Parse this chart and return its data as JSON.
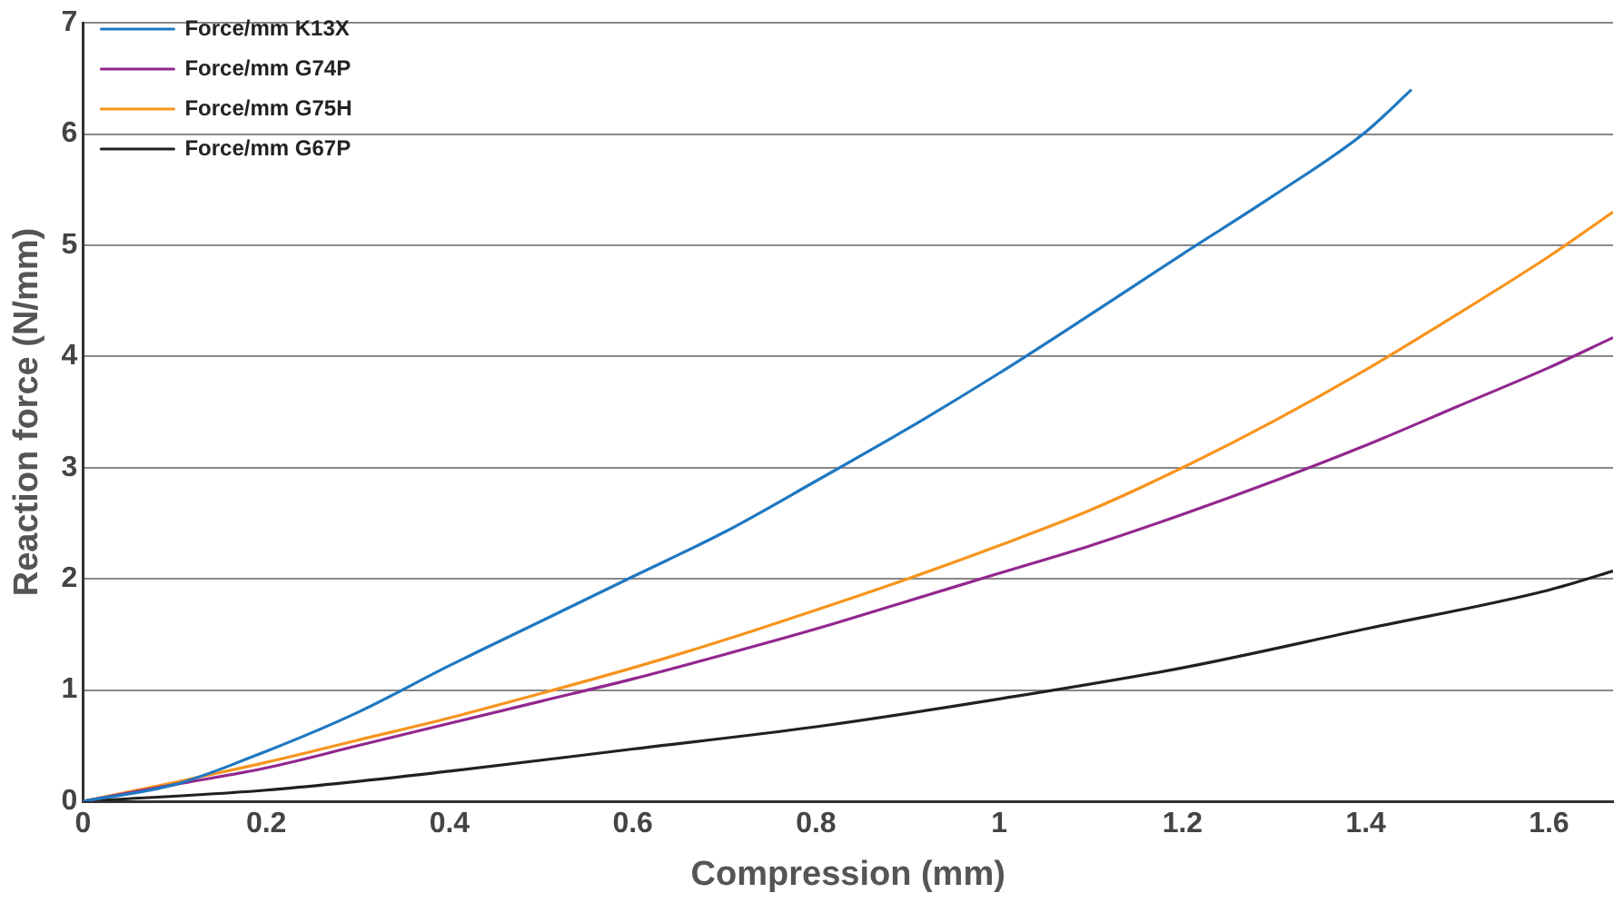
{
  "chart_data": {
    "type": "line",
    "xlabel": "Compression (mm)",
    "ylabel": "Reaction force (N/mm)",
    "xlim": [
      0,
      1.67
    ],
    "xticks": [
      0,
      0.2,
      0.4,
      0.6,
      0.8,
      1.0,
      1.2,
      1.4,
      1.6
    ],
    "ylim": [
      0,
      7
    ],
    "yticks": [
      0,
      1,
      2,
      3,
      4,
      5,
      6,
      7
    ],
    "grid": "y",
    "legend": "top left",
    "marker": "none",
    "line_style": "solid",
    "series": [
      {
        "name": "Force/mm K13X",
        "color": "#1f78c1",
        "x": [
          0,
          0.1,
          0.2,
          0.3,
          0.4,
          0.5,
          0.6,
          0.7,
          0.8,
          0.9,
          1.0,
          1.1,
          1.2,
          1.3,
          1.4,
          1.45
        ],
        "values": [
          0,
          0.15,
          0.45,
          0.8,
          1.22,
          1.62,
          2.02,
          2.42,
          2.88,
          3.35,
          3.85,
          4.38,
          4.92,
          5.45,
          6.02,
          6.4
        ]
      },
      {
        "name": "Force/mm G74P",
        "color": "#92278f",
        "x": [
          0,
          0.1,
          0.2,
          0.3,
          0.4,
          0.5,
          0.6,
          0.7,
          0.8,
          0.9,
          1.0,
          1.1,
          1.2,
          1.3,
          1.4,
          1.5,
          1.6,
          1.67
        ],
        "values": [
          0,
          0.15,
          0.3,
          0.5,
          0.7,
          0.9,
          1.1,
          1.32,
          1.55,
          1.8,
          2.05,
          2.3,
          2.58,
          2.88,
          3.2,
          3.55,
          3.9,
          4.17
        ]
      },
      {
        "name": "Force/mm G75H",
        "color": "#f7941d",
        "x": [
          0,
          0.1,
          0.2,
          0.3,
          0.4,
          0.5,
          0.6,
          0.7,
          0.8,
          0.9,
          1.0,
          1.1,
          1.2,
          1.3,
          1.4,
          1.5,
          1.6,
          1.67
        ],
        "values": [
          0,
          0.17,
          0.35,
          0.55,
          0.75,
          0.97,
          1.2,
          1.45,
          1.72,
          2.0,
          2.3,
          2.62,
          3.0,
          3.42,
          3.88,
          4.38,
          4.9,
          5.3
        ]
      },
      {
        "name": "Force/mm G67P",
        "color": "#231f20",
        "x": [
          0,
          0.2,
          0.4,
          0.6,
          0.8,
          1.0,
          1.2,
          1.4,
          1.6,
          1.67
        ],
        "values": [
          0,
          0.1,
          0.27,
          0.47,
          0.67,
          0.92,
          1.2,
          1.55,
          1.9,
          2.07
        ]
      }
    ]
  }
}
